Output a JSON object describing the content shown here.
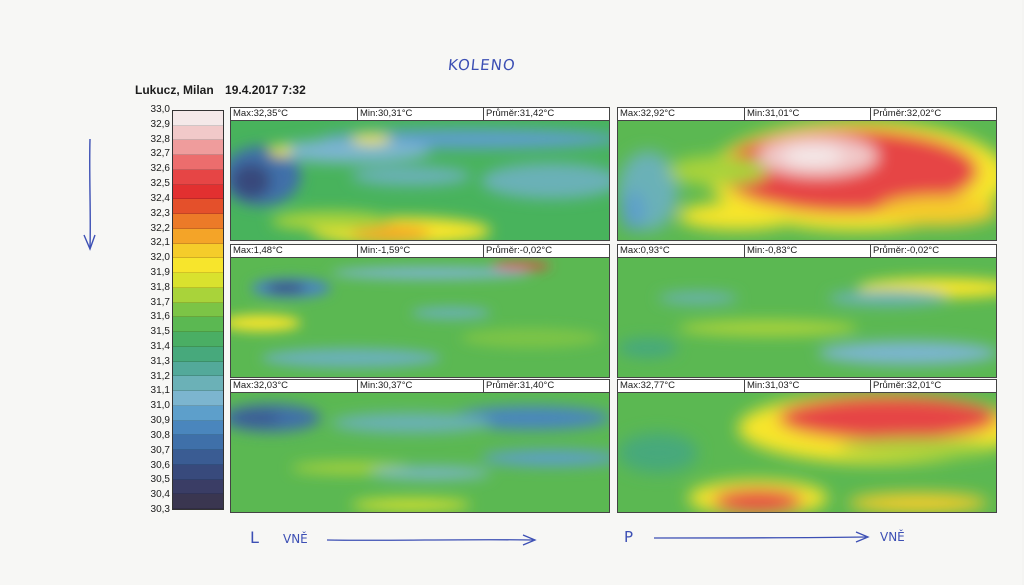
{
  "handwritten": {
    "title": "KOLENO",
    "left_mark": "L",
    "left_text": "VNĚ",
    "right_mark": "P",
    "right_text": "VNĚ"
  },
  "header": {
    "patient": "Lukucz, Milan",
    "datetime": "19.4.2017 7:32"
  },
  "scale": {
    "labels": [
      "33,0",
      "32,9",
      "32,8",
      "32,7",
      "32,6",
      "32,5",
      "32,4",
      "32,3",
      "32,2",
      "32,1",
      "32,0",
      "31,9",
      "31,8",
      "31,7",
      "31,6",
      "31,5",
      "31,4",
      "31,3",
      "31,2",
      "31,1",
      "31,0",
      "30,9",
      "30,8",
      "30,7",
      "30,6",
      "30,5",
      "30,4",
      "30,3"
    ],
    "colors": [
      "#f4e9e9",
      "#f1c9c9",
      "#ef9c9c",
      "#ec6d6d",
      "#e64545",
      "#e23030",
      "#e4502b",
      "#ec7a28",
      "#f4a428",
      "#f5cc2a",
      "#f7e52c",
      "#d9e22e",
      "#a9d33a",
      "#7cc446",
      "#5bb852",
      "#4aae64",
      "#47a97c",
      "#53a99a",
      "#6bb1b7",
      "#7cb5cf",
      "#5d9fcb",
      "#4a86bd",
      "#3f70a9",
      "#3a5c93",
      "#384a7c",
      "#3a3d65",
      "#3a3650"
    ]
  },
  "panels": [
    {
      "id": "top-left",
      "max": "Max:32,35°C",
      "min": "Min:30,31°C",
      "avg": "Průměr:31,42°C"
    },
    {
      "id": "top-right",
      "max": "Max:32,92°C",
      "min": "Min:31,01°C",
      "avg": "Průměr:32,02°C"
    },
    {
      "id": "mid-left",
      "max": "Max:1,48°C",
      "min": "Min:-1,59°C",
      "avg": "Průměr:-0,02°C"
    },
    {
      "id": "mid-right",
      "max": "Max:0,93°C",
      "min": "Min:-0,83°C",
      "avg": "Průměr:-0,02°C"
    },
    {
      "id": "bot-left",
      "max": "Max:32,03°C",
      "min": "Min:30,37°C",
      "avg": "Průměr:31,40°C"
    },
    {
      "id": "bot-right",
      "max": "Max:32,77°C",
      "min": "Min:31,03°C",
      "avg": "Průměr:32,01°C"
    }
  ]
}
